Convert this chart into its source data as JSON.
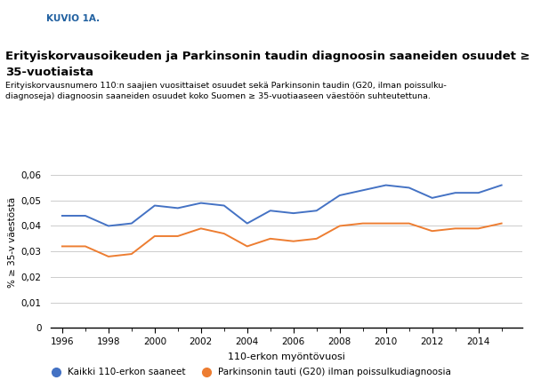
{
  "years": [
    1996,
    1997,
    1998,
    1999,
    2000,
    2001,
    2002,
    2003,
    2004,
    2005,
    2006,
    2007,
    2008,
    2009,
    2010,
    2011,
    2012,
    2013,
    2014,
    2015
  ],
  "blue": [
    0.044,
    0.044,
    0.04,
    0.041,
    0.048,
    0.047,
    0.049,
    0.048,
    0.041,
    0.046,
    0.045,
    0.046,
    0.052,
    0.054,
    0.056,
    0.055,
    0.051,
    0.053,
    0.053,
    0.056
  ],
  "orange": [
    0.032,
    0.032,
    0.028,
    0.029,
    0.036,
    0.036,
    0.039,
    0.037,
    0.032,
    0.035,
    0.034,
    0.035,
    0.04,
    0.041,
    0.041,
    0.041,
    0.038,
    0.039,
    0.039,
    0.041
  ],
  "blue_color": "#4472C4",
  "orange_color": "#ED7D31",
  "ylabel": "% ≥ 35-v väestöstä",
  "xlabel": "110-erkon myöntövuosi",
  "legend_blue": "Kaikki 110-erkon saaneet",
  "legend_orange": "Parkinsonin tauti (G20) ilman poissulkudiagnoosia",
  "ytick_vals": [
    0,
    0.01,
    0.02,
    0.03,
    0.04,
    0.05,
    0.06
  ],
  "ytick_labels": [
    "0",
    "0,01",
    "0,02",
    "0,03",
    "0,04",
    "0,05",
    "0,06"
  ],
  "xtick_years": [
    1996,
    1998,
    2000,
    2002,
    2004,
    2006,
    2008,
    2010,
    2012,
    2014
  ],
  "ylim": [
    0,
    0.067
  ],
  "xlim": [
    1995.5,
    2015.9
  ],
  "grid_color": "#cccccc",
  "header_bg": "#2060A0",
  "header_text": "KUVIO 1A.",
  "title_line1": "Erityiskorvausoikeuden ja Parkinsonin taudin diagnoosin saaneiden osuudet ≥",
  "title_line2": "35-vuotiaista",
  "subtitle": "Erityiskorvausnumero 110:n saajien vuosittaiset osuudet sekä Parkinsonin taudin (G20, ilman poissulku-\ndiagnoseja) diagnoosin saaneiden osuudet koko Suomen ≥ 35-vuotiaaseen väestöön suhteutettuna."
}
